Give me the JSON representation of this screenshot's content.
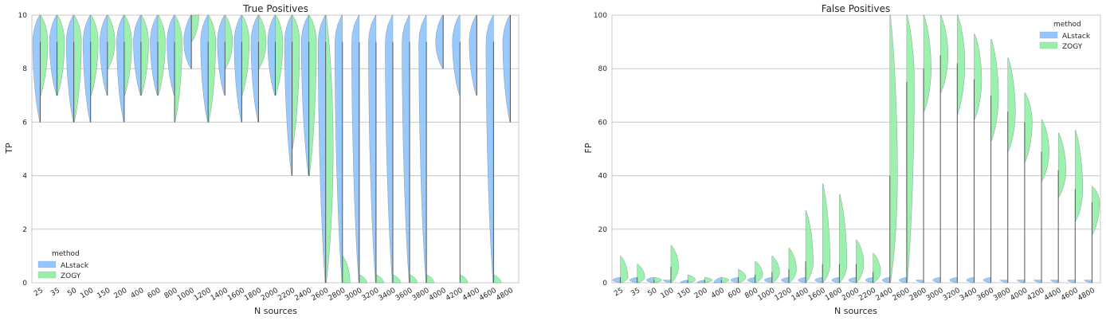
{
  "colors": {
    "alstack": "#92c6ff",
    "zogy": "#97f0aa",
    "median": "#555555"
  },
  "chart_data": [
    {
      "type": "violin",
      "title": "True Positives",
      "xlabel": "N sources",
      "ylabel": "TP",
      "ylim": [
        0,
        10
      ],
      "yticks": [
        "0",
        "2",
        "4",
        "6",
        "8",
        "10"
      ],
      "legend": {
        "title": "method",
        "position": "lower-left",
        "entries": [
          "ALstack",
          "ZOGY"
        ]
      },
      "categories": [
        "25",
        "35",
        "50",
        "100",
        "150",
        "200",
        "400",
        "600",
        "800",
        "1000",
        "1200",
        "1400",
        "1600",
        "1800",
        "2000",
        "2200",
        "2400",
        "2600",
        "2800",
        "3000",
        "3200",
        "3400",
        "3600",
        "3800",
        "4000",
        "4200",
        "4400",
        "4600",
        "4800"
      ],
      "series": [
        {
          "name": "ALstack",
          "min": [
            6,
            7,
            6,
            6,
            7,
            6,
            7,
            7,
            7,
            8,
            6,
            7,
            6,
            6,
            7,
            4,
            4,
            0,
            0,
            0,
            0,
            0,
            0,
            0,
            8,
            7,
            7,
            0,
            6
          ],
          "median": [
            9,
            9,
            9,
            9,
            9,
            9,
            9,
            9,
            9,
            9,
            9,
            9,
            9,
            9,
            9,
            9,
            9,
            9,
            9,
            9,
            9,
            9,
            9,
            9,
            9,
            9,
            9,
            9,
            9
          ],
          "max": [
            10,
            10,
            10,
            10,
            10,
            10,
            10,
            10,
            10,
            10,
            10,
            10,
            10,
            10,
            10,
            10,
            10,
            10,
            10,
            10,
            10,
            10,
            10,
            10,
            10,
            10,
            10,
            10,
            10
          ]
        },
        {
          "name": "ZOGY",
          "min": [
            7,
            7,
            6,
            7,
            8,
            7,
            7,
            7,
            6,
            9,
            6,
            8,
            7,
            8,
            7,
            5,
            4,
            0,
            0,
            0,
            0,
            0,
            0,
            0,
            10,
            0,
            10,
            0,
            10
          ],
          "median": [
            9,
            9,
            9,
            9,
            9,
            9,
            9,
            9,
            9,
            10,
            9,
            9,
            9,
            9,
            9,
            9,
            9,
            5,
            0,
            0,
            0,
            0,
            0,
            0,
            10,
            0,
            10,
            0,
            10
          ],
          "max": [
            10,
            10,
            10,
            10,
            10,
            10,
            10,
            10,
            10,
            10,
            10,
            10,
            10,
            10,
            10,
            10,
            10,
            10,
            1,
            0.3,
            0.3,
            0.3,
            0.3,
            0.3,
            10,
            0.3,
            10,
            0.3,
            10
          ]
        }
      ]
    },
    {
      "type": "violin",
      "title": "False Positives",
      "xlabel": "N sources",
      "ylabel": "FP",
      "ylim": [
        0,
        100
      ],
      "yticks": [
        "0",
        "20",
        "40",
        "60",
        "80",
        "100"
      ],
      "legend": {
        "title": "method",
        "position": "upper-right",
        "entries": [
          "ALstack",
          "ZOGY"
        ]
      },
      "categories": [
        "25",
        "35",
        "50",
        "100",
        "150",
        "200",
        "400",
        "600",
        "800",
        "1000",
        "1200",
        "1400",
        "1600",
        "1800",
        "2000",
        "2200",
        "2400",
        "2600",
        "2800",
        "3000",
        "3200",
        "3400",
        "3600",
        "3800",
        "4000",
        "4200",
        "4400",
        "4600",
        "4800"
      ],
      "series": [
        {
          "name": "ALstack",
          "min": [
            0,
            0,
            0,
            0,
            0,
            0,
            0,
            0,
            0,
            0,
            0,
            0,
            0,
            0,
            0,
            0,
            0,
            0,
            0,
            0,
            0,
            0,
            0,
            0,
            0,
            0,
            0,
            0,
            0
          ],
          "median": [
            1,
            1,
            1,
            1,
            0,
            0,
            0,
            1,
            1,
            1,
            1,
            1,
            1,
            1,
            1,
            1,
            1,
            1,
            1,
            1,
            1,
            1,
            1,
            1,
            1,
            1,
            1,
            1,
            1
          ],
          "max": [
            2,
            2,
            2,
            1,
            1,
            1,
            2,
            2,
            2,
            2,
            2,
            2,
            2,
            2,
            2,
            2,
            2,
            2,
            1,
            2,
            2,
            2,
            2,
            1,
            1,
            1,
            1,
            1,
            1
          ]
        },
        {
          "name": "ZOGY",
          "min": [
            0,
            0,
            0,
            0,
            0,
            0,
            0,
            0,
            0,
            0,
            0,
            0,
            0,
            0,
            0,
            0,
            0,
            0,
            64,
            71,
            63,
            61,
            53,
            49,
            45,
            38,
            32,
            23,
            18
          ],
          "median": [
            2,
            2,
            1,
            6,
            1,
            1,
            1,
            2,
            3,
            4,
            5,
            8,
            7,
            7,
            7,
            4,
            40,
            75,
            80,
            85,
            82,
            76,
            70,
            64,
            60,
            49,
            42,
            35,
            30
          ],
          "max": [
            10,
            7,
            2,
            14,
            3,
            2,
            2,
            5,
            8,
            10,
            13,
            27,
            37,
            33,
            16,
            11,
            100,
            100,
            100,
            100,
            100,
            93,
            91,
            84,
            71,
            61,
            56,
            57,
            36
          ]
        }
      ]
    }
  ]
}
